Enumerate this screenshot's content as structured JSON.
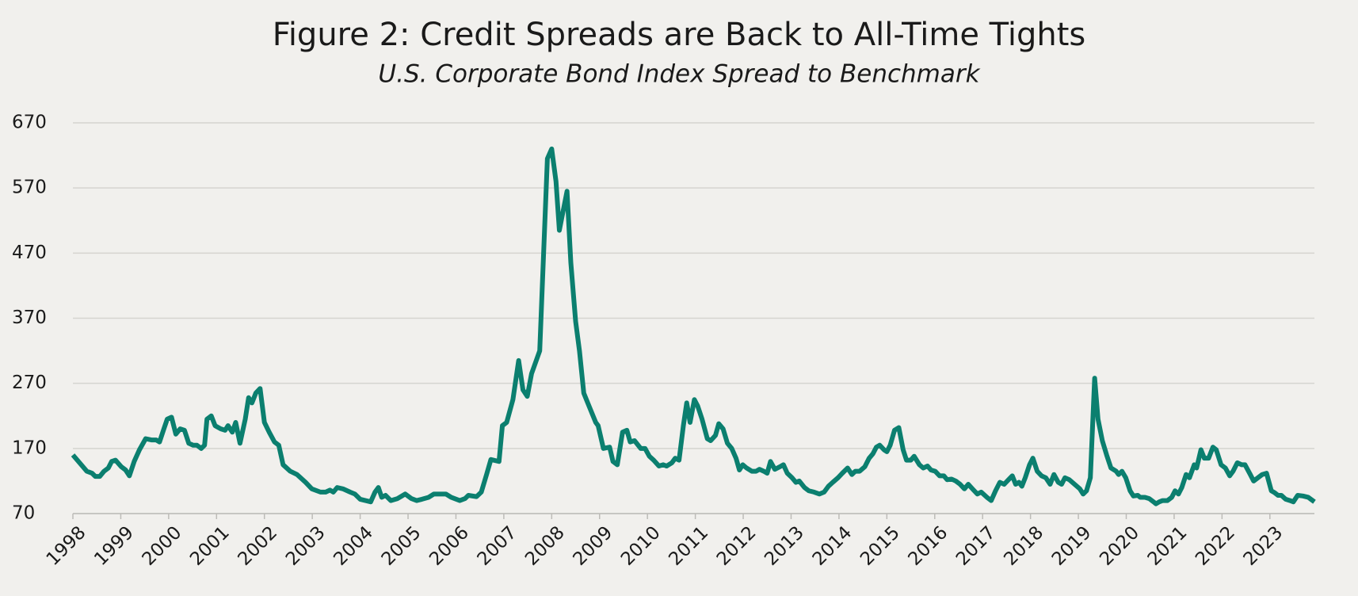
{
  "chart_data": {
    "type": "line",
    "title": "Figure 2: Credit Spreads are Back to All-Time Tights",
    "subtitle": "U.S. Corporate Bond Index Spread to Benchmark",
    "color": "#0b7f6f",
    "grid": true,
    "ylim": [
      70,
      670
    ],
    "yticks": [
      70,
      170,
      270,
      370,
      470,
      570,
      670
    ],
    "xlim": [
      1998,
      2023.93
    ],
    "xticks": [
      1998,
      1999,
      2000,
      2001,
      2002,
      2003,
      2004,
      2005,
      2006,
      2007,
      2008,
      2009,
      2010,
      2011,
      2012,
      2013,
      2014,
      2015,
      2016,
      2017,
      2018,
      2019,
      2020,
      2021,
      2022,
      2023
    ],
    "x": [
      1998.0,
      1998.14,
      1998.29,
      1998.4,
      1998.47,
      1998.56,
      1998.65,
      1998.74,
      1998.81,
      1998.89,
      1999.01,
      1999.1,
      1999.18,
      1999.28,
      1999.39,
      1999.52,
      1999.65,
      1999.74,
      1999.81,
      1999.9,
      1999.97,
      2000.06,
      2000.15,
      2000.24,
      2000.33,
      2000.42,
      2000.51,
      2000.59,
      2000.68,
      2000.75,
      2000.8,
      2000.89,
      2000.97,
      2001.09,
      2001.18,
      2001.24,
      2001.33,
      2001.4,
      2001.49,
      2001.6,
      2001.67,
      2001.74,
      2001.82,
      2001.91,
      2002.0,
      2002.1,
      2002.21,
      2002.3,
      2002.39,
      2002.54,
      2002.68,
      2002.86,
      2002.99,
      2003.17,
      2003.28,
      2003.37,
      2003.44,
      2003.52,
      2003.64,
      2003.79,
      2003.89,
      2004.0,
      2004.22,
      2004.31,
      2004.38,
      2004.45,
      2004.53,
      2004.64,
      2004.78,
      2004.94,
      2005.07,
      2005.18,
      2005.29,
      2005.43,
      2005.54,
      2005.79,
      2005.9,
      2006.08,
      2006.19,
      2006.26,
      2006.43,
      2006.53,
      2006.64,
      2006.73,
      2006.9,
      2006.97,
      2007.06,
      2007.19,
      2007.31,
      2007.4,
      2007.49,
      2007.58,
      2007.75,
      2007.91,
      2008.0,
      2008.09,
      2008.16,
      2008.32,
      2008.4,
      2008.5,
      2008.58,
      2008.67,
      2008.78,
      2008.92,
      2008.97,
      2009.08,
      2009.21,
      2009.28,
      2009.37,
      2009.48,
      2009.57,
      2009.64,
      2009.73,
      2009.86,
      2009.95,
      2010.04,
      2010.13,
      2010.24,
      2010.33,
      2010.4,
      2010.51,
      2010.58,
      2010.66,
      2010.75,
      2010.82,
      2010.89,
      2010.98,
      2011.05,
      2011.14,
      2011.25,
      2011.32,
      2011.42,
      2011.49,
      2011.58,
      2011.67,
      2011.76,
      2011.85,
      2011.92,
      2011.99,
      2012.07,
      2012.18,
      2012.27,
      2012.34,
      2012.43,
      2012.5,
      2012.57,
      2012.66,
      2012.77,
      2012.84,
      2012.92,
      2013.02,
      2013.1,
      2013.17,
      2013.28,
      2013.37,
      2013.48,
      2013.59,
      2013.69,
      2013.78,
      2013.87,
      2013.98,
      2014.07,
      2014.18,
      2014.27,
      2014.34,
      2014.43,
      2014.54,
      2014.63,
      2014.71,
      2014.78,
      2014.85,
      2014.94,
      2015.0,
      2015.07,
      2015.16,
      2015.25,
      2015.34,
      2015.41,
      2015.5,
      2015.57,
      2015.68,
      2015.76,
      2015.85,
      2015.92,
      2016.01,
      2016.1,
      2016.19,
      2016.26,
      2016.35,
      2016.44,
      2016.53,
      2016.62,
      2016.7,
      2016.8,
      2016.89,
      2016.97,
      2017.09,
      2017.18,
      2017.27,
      2017.36,
      2017.45,
      2017.54,
      2017.62,
      2017.69,
      2017.76,
      2017.82,
      2017.89,
      2017.98,
      2018.05,
      2018.14,
      2018.23,
      2018.32,
      2018.41,
      2018.49,
      2018.58,
      2018.65,
      2018.72,
      2018.81,
      2018.92,
      2019.03,
      2019.1,
      2019.17,
      2019.25,
      2019.34,
      2019.41,
      2019.5,
      2019.59,
      2019.68,
      2019.79,
      2019.84,
      2019.91,
      2019.99,
      2020.08,
      2020.15,
      2020.24,
      2020.29,
      2020.39,
      2020.48,
      2020.57,
      2020.62,
      2020.69,
      2020.76,
      2020.86,
      2020.95,
      2021.02,
      2021.09,
      2021.16,
      2021.25,
      2021.32,
      2021.42,
      2021.47,
      2021.56,
      2021.63,
      2021.72,
      2021.81,
      2021.88,
      2021.98,
      2022.07,
      2022.16,
      2022.23,
      2022.32,
      2022.41,
      2022.48,
      2022.59,
      2022.66,
      2022.75,
      2022.84,
      2022.93,
      2023.03,
      2023.1,
      2023.17,
      2023.24,
      2023.33,
      2023.42,
      2023.49,
      2023.58,
      2023.69,
      2023.8,
      2023.93
    ],
    "values": [
      160,
      148,
      135,
      132,
      127,
      127,
      135,
      140,
      150,
      152,
      142,
      137,
      128,
      150,
      168,
      185,
      183,
      183,
      180,
      200,
      215,
      218,
      192,
      200,
      198,
      178,
      175,
      175,
      170,
      175,
      215,
      220,
      205,
      200,
      198,
      205,
      195,
      210,
      178,
      215,
      248,
      240,
      255,
      262,
      210,
      195,
      180,
      175,
      145,
      135,
      130,
      118,
      108,
      103,
      103,
      106,
      103,
      110,
      108,
      103,
      100,
      92,
      88,
      103,
      110,
      95,
      98,
      90,
      93,
      100,
      93,
      90,
      92,
      95,
      100,
      100,
      95,
      90,
      93,
      98,
      96,
      103,
      130,
      153,
      150,
      205,
      210,
      245,
      305,
      260,
      250,
      285,
      320,
      615,
      630,
      580,
      505,
      565,
      455,
      365,
      320,
      255,
      235,
      210,
      205,
      170,
      172,
      150,
      145,
      195,
      198,
      180,
      182,
      170,
      170,
      158,
      152,
      143,
      145,
      143,
      148,
      155,
      152,
      205,
      240,
      210,
      245,
      235,
      215,
      185,
      182,
      190,
      208,
      200,
      178,
      170,
      155,
      137,
      145,
      140,
      135,
      135,
      138,
      135,
      132,
      150,
      138,
      142,
      145,
      132,
      125,
      118,
      120,
      110,
      105,
      103,
      100,
      103,
      112,
      118,
      125,
      132,
      140,
      130,
      135,
      135,
      142,
      155,
      162,
      172,
      175,
      168,
      165,
      175,
      198,
      202,
      168,
      152,
      152,
      158,
      145,
      140,
      143,
      137,
      135,
      128,
      128,
      122,
      123,
      120,
      115,
      108,
      115,
      107,
      100,
      103,
      95,
      90,
      105,
      118,
      115,
      122,
      128,
      115,
      118,
      112,
      125,
      145,
      155,
      135,
      128,
      125,
      115,
      130,
      118,
      115,
      125,
      122,
      115,
      108,
      100,
      105,
      125,
      278,
      215,
      182,
      160,
      140,
      135,
      130,
      135,
      125,
      105,
      97,
      98,
      95,
      95,
      93,
      88,
      85,
      88,
      90,
      90,
      95,
      105,
      100,
      110,
      130,
      125,
      145,
      140,
      168,
      155,
      155,
      172,
      168,
      145,
      140,
      128,
      135,
      148,
      145,
      145,
      130,
      120,
      125,
      130,
      132,
      105,
      102,
      98,
      98,
      92,
      90,
      88,
      98,
      97,
      95,
      88
    ]
  }
}
